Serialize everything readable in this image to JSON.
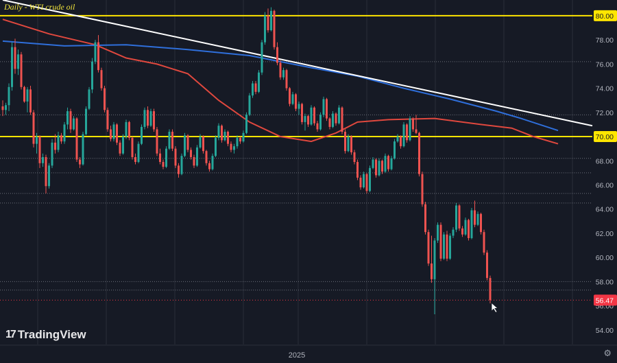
{
  "title": "Daily - WTI crude oil",
  "brand": {
    "logo": "17",
    "name": "TradingView"
  },
  "icons": {
    "settings": "settings-gear-icon",
    "cursor": "cursor-arrow-icon"
  },
  "colors": {
    "background": "#161a25",
    "grid": "#2a2e39",
    "up": "#26a69a",
    "down": "#ef5350",
    "level": "#ffe600",
    "trendline": "#ffffff",
    "ma_red": "#e0483e",
    "ma_blue": "#2f6fdb",
    "price_label": "#f23645"
  },
  "chart_data": {
    "type": "candlestick",
    "title": "Daily - WTI crude oil",
    "x_axis": {
      "tick_labels": [
        "2025"
      ]
    },
    "y_axis": {
      "side": "right",
      "range": [
        52.8,
        81.3
      ],
      "tick_labels": [
        "80.00",
        "78.00",
        "76.00",
        "74.00",
        "72.00",
        "70.00",
        "68.00",
        "66.00",
        "64.00",
        "62.00",
        "60.00",
        "58.00",
        "56.00",
        "54.00"
      ]
    },
    "last_price": 56.47,
    "horizontal_levels": [
      {
        "value": 80.0,
        "style": "thick",
        "color": "#ffe600"
      },
      {
        "value": 70.0,
        "style": "thick",
        "color": "#ffe600"
      },
      {
        "value": 76.2,
        "style": "dotted"
      },
      {
        "value": 71.8,
        "style": "dotted"
      },
      {
        "value": 68.2,
        "style": "dotted"
      },
      {
        "value": 67.0,
        "style": "dotted"
      },
      {
        "value": 65.3,
        "style": "dotted"
      },
      {
        "value": 64.5,
        "style": "dotted"
      },
      {
        "value": 58.0,
        "style": "dotted"
      },
      {
        "value": 57.3,
        "style": "dotted"
      }
    ],
    "trendline": {
      "from": {
        "index": 0,
        "value": 81.3
      },
      "to": {
        "index": 169,
        "value": 72.1
      }
    },
    "moving_averages": [
      {
        "color": "#e0483e",
        "points": [
          [
            0,
            79.7
          ],
          [
            15,
            78.5
          ],
          [
            30,
            77.6
          ],
          [
            40,
            76.5
          ],
          [
            50,
            76.0
          ],
          [
            60,
            75.2
          ],
          [
            70,
            73.0
          ],
          [
            80,
            71.2
          ],
          [
            90,
            70.0
          ],
          [
            100,
            69.6
          ],
          [
            108,
            70.3
          ],
          [
            115,
            71.2
          ],
          [
            125,
            71.4
          ],
          [
            140,
            71.5
          ],
          [
            155,
            71.0
          ],
          [
            165,
            70.7
          ],
          [
            172,
            70.0
          ],
          [
            180,
            69.4
          ]
        ]
      },
      {
        "color": "#2f6fdb",
        "points": [
          [
            0,
            77.9
          ],
          [
            20,
            77.5
          ],
          [
            40,
            77.6
          ],
          [
            60,
            77.2
          ],
          [
            80,
            76.7
          ],
          [
            100,
            75.7
          ],
          [
            115,
            75.0
          ],
          [
            130,
            74.0
          ],
          [
            145,
            73.1
          ],
          [
            160,
            72.1
          ],
          [
            168,
            71.5
          ],
          [
            180,
            70.5
          ]
        ]
      }
    ],
    "candles": [
      [
        72.5,
        73.0,
        71.7,
        72.2
      ],
      [
        72.2,
        72.8,
        71.8,
        72.6
      ],
      [
        72.6,
        74.4,
        72.1,
        74.1
      ],
      [
        74.1,
        77.8,
        73.8,
        77.4
      ],
      [
        77.4,
        78.1,
        75.2,
        75.6
      ],
      [
        75.6,
        77.2,
        75.1,
        76.8
      ],
      [
        76.8,
        77.0,
        73.9,
        74.1
      ],
      [
        74.1,
        74.2,
        72.8,
        72.9
      ],
      [
        72.9,
        74.1,
        72.0,
        73.9
      ],
      [
        73.9,
        74.2,
        71.8,
        72.0
      ],
      [
        72.0,
        72.2,
        69.1,
        69.4
      ],
      [
        69.4,
        70.3,
        68.6,
        70.0
      ],
      [
        70.0,
        70.1,
        67.4,
        67.8
      ],
      [
        67.8,
        68.6,
        67.5,
        68.3
      ],
      [
        68.3,
        68.5,
        65.3,
        65.9
      ],
      [
        65.9,
        67.8,
        65.7,
        67.6
      ],
      [
        67.6,
        69.8,
        67.4,
        69.5
      ],
      [
        69.5,
        70.2,
        68.6,
        68.9
      ],
      [
        68.9,
        70.4,
        68.7,
        70.1
      ],
      [
        70.1,
        70.3,
        69.4,
        69.6
      ],
      [
        69.6,
        71.2,
        69.4,
        71.0
      ],
      [
        71.0,
        72.4,
        70.6,
        72.1
      ],
      [
        72.1,
        72.3,
        70.3,
        70.6
      ],
      [
        70.6,
        71.7,
        70.5,
        71.5
      ],
      [
        71.5,
        71.6,
        67.9,
        68.1
      ],
      [
        68.1,
        68.3,
        67.4,
        67.7
      ],
      [
        67.7,
        70.4,
        67.6,
        70.2
      ],
      [
        70.2,
        72.5,
        70.1,
        72.3
      ],
      [
        72.3,
        74.1,
        72.2,
        73.9
      ],
      [
        73.9,
        76.5,
        73.6,
        76.2
      ],
      [
        76.2,
        78.0,
        76.0,
        77.8
      ],
      [
        77.8,
        78.4,
        75.3,
        75.5
      ],
      [
        75.5,
        75.7,
        73.8,
        74.0
      ],
      [
        74.0,
        74.2,
        72.0,
        72.2
      ],
      [
        72.2,
        72.4,
        70.4,
        70.6
      ],
      [
        70.6,
        70.9,
        69.6,
        69.8
      ],
      [
        69.8,
        71.2,
        69.6,
        71.0
      ],
      [
        71.0,
        71.1,
        69.3,
        69.5
      ],
      [
        69.5,
        69.7,
        68.4,
        68.6
      ],
      [
        68.6,
        70.2,
        68.5,
        70.0
      ],
      [
        70.0,
        71.4,
        69.8,
        71.2
      ],
      [
        71.2,
        71.3,
        69.7,
        69.9
      ],
      [
        69.9,
        70.0,
        68.1,
        68.3
      ],
      [
        68.3,
        68.6,
        67.7,
        67.9
      ],
      [
        67.9,
        69.6,
        67.8,
        69.4
      ],
      [
        69.4,
        71.0,
        69.3,
        70.8
      ],
      [
        70.8,
        72.4,
        70.6,
        72.2
      ],
      [
        72.2,
        72.5,
        70.7,
        70.9
      ],
      [
        70.9,
        72.3,
        70.8,
        72.1
      ],
      [
        72.1,
        72.3,
        70.4,
        70.6
      ],
      [
        70.6,
        70.8,
        68.4,
        68.6
      ],
      [
        68.6,
        69.0,
        67.7,
        67.9
      ],
      [
        67.9,
        68.1,
        67.3,
        67.5
      ],
      [
        67.5,
        69.2,
        67.4,
        69.0
      ],
      [
        69.0,
        70.6,
        68.9,
        70.4
      ],
      [
        70.4,
        70.6,
        68.8,
        69.0
      ],
      [
        69.0,
        69.2,
        67.4,
        67.6
      ],
      [
        67.6,
        67.8,
        66.6,
        66.9
      ],
      [
        66.9,
        68.6,
        66.8,
        68.4
      ],
      [
        68.4,
        70.3,
        68.3,
        70.1
      ],
      [
        70.1,
        70.2,
        68.7,
        68.9
      ],
      [
        68.9,
        69.1,
        68.1,
        68.3
      ],
      [
        68.3,
        68.5,
        67.4,
        67.6
      ],
      [
        67.6,
        69.3,
        67.5,
        69.1
      ],
      [
        69.1,
        70.2,
        69.0,
        70.0
      ],
      [
        70.0,
        70.1,
        68.6,
        68.8
      ],
      [
        68.8,
        68.9,
        67.6,
        67.8
      ],
      [
        67.8,
        68.0,
        67.1,
        67.3
      ],
      [
        67.3,
        68.6,
        67.2,
        68.4
      ],
      [
        68.4,
        70.1,
        68.3,
        69.9
      ],
      [
        69.9,
        71.1,
        69.7,
        70.9
      ],
      [
        70.9,
        71.0,
        69.5,
        69.7
      ],
      [
        69.7,
        70.6,
        69.6,
        70.4
      ],
      [
        70.4,
        70.5,
        69.2,
        69.4
      ],
      [
        69.4,
        69.6,
        68.7,
        68.9
      ],
      [
        68.9,
        69.4,
        68.6,
        69.2
      ],
      [
        69.2,
        70.1,
        69.0,
        69.9
      ],
      [
        69.9,
        70.0,
        69.4,
        69.6
      ],
      [
        69.6,
        70.5,
        69.5,
        70.3
      ],
      [
        70.3,
        72.0,
        70.2,
        71.8
      ],
      [
        71.8,
        73.6,
        71.7,
        73.4
      ],
      [
        73.4,
        74.6,
        73.2,
        74.4
      ],
      [
        74.4,
        74.6,
        73.5,
        73.7
      ],
      [
        73.7,
        75.5,
        73.6,
        75.3
      ],
      [
        75.3,
        78.0,
        75.1,
        77.8
      ],
      [
        77.8,
        80.3,
        77.6,
        80.0
      ],
      [
        80.0,
        80.6,
        78.6,
        78.8
      ],
      [
        78.8,
        80.7,
        78.7,
        80.4
      ],
      [
        80.4,
        80.5,
        77.2,
        77.4
      ],
      [
        77.4,
        77.8,
        75.9,
        76.1
      ],
      [
        76.1,
        76.3,
        74.7,
        74.9
      ],
      [
        74.9,
        75.7,
        74.7,
        75.5
      ],
      [
        75.5,
        75.6,
        73.8,
        74.0
      ],
      [
        74.0,
        74.1,
        72.5,
        72.7
      ],
      [
        72.7,
        73.7,
        72.6,
        73.5
      ],
      [
        73.5,
        73.6,
        72.1,
        72.3
      ],
      [
        72.3,
        72.9,
        71.8,
        72.7
      ],
      [
        72.7,
        72.8,
        71.0,
        71.2
      ],
      [
        71.2,
        71.9,
        70.5,
        71.7
      ],
      [
        71.7,
        71.8,
        70.8,
        71.0
      ],
      [
        71.0,
        72.6,
        70.9,
        72.4
      ],
      [
        72.4,
        72.5,
        70.9,
        71.1
      ],
      [
        71.1,
        71.3,
        70.4,
        70.6
      ],
      [
        70.6,
        72.0,
        70.5,
        71.8
      ],
      [
        71.8,
        73.3,
        71.6,
        73.1
      ],
      [
        73.1,
        73.2,
        71.3,
        71.5
      ],
      [
        71.5,
        71.6,
        70.6,
        70.8
      ],
      [
        70.8,
        72.1,
        70.7,
        71.9
      ],
      [
        71.9,
        72.0,
        70.9,
        71.1
      ],
      [
        71.1,
        72.6,
        71.0,
        72.4
      ],
      [
        72.4,
        72.5,
        70.2,
        70.4
      ],
      [
        70.4,
        70.6,
        68.6,
        68.8
      ],
      [
        68.8,
        70.2,
        68.7,
        70.0
      ],
      [
        70.0,
        70.1,
        68.5,
        68.7
      ],
      [
        68.7,
        68.9,
        67.7,
        67.9
      ],
      [
        67.9,
        68.1,
        66.4,
        66.6
      ],
      [
        66.6,
        66.8,
        65.6,
        65.8
      ],
      [
        65.8,
        67.1,
        65.7,
        66.9
      ],
      [
        66.9,
        67.0,
        65.3,
        65.5
      ],
      [
        65.5,
        67.6,
        65.4,
        67.4
      ],
      [
        67.4,
        68.3,
        67.3,
        68.1
      ],
      [
        68.1,
        68.2,
        66.6,
        66.8
      ],
      [
        66.8,
        68.2,
        66.7,
        68.0
      ],
      [
        68.0,
        68.1,
        66.9,
        67.1
      ],
      [
        67.1,
        68.6,
        67.0,
        68.4
      ],
      [
        68.4,
        68.5,
        67.1,
        67.3
      ],
      [
        67.3,
        68.4,
        67.2,
        68.2
      ],
      [
        68.2,
        69.8,
        68.1,
        69.6
      ],
      [
        69.6,
        70.2,
        69.5,
        70.0
      ],
      [
        70.0,
        70.1,
        69.0,
        69.2
      ],
      [
        69.2,
        71.2,
        69.1,
        71.0
      ],
      [
        71.0,
        71.1,
        69.5,
        69.7
      ],
      [
        69.7,
        71.7,
        69.6,
        71.5
      ],
      [
        71.5,
        71.6,
        70.4,
        70.6
      ],
      [
        70.6,
        71.8,
        70.2,
        70.3
      ],
      [
        70.3,
        70.4,
        66.7,
        66.9
      ],
      [
        66.9,
        67.1,
        64.2,
        64.4
      ],
      [
        64.4,
        64.6,
        61.9,
        62.1
      ],
      [
        62.1,
        62.3,
        59.3,
        59.5
      ],
      [
        59.5,
        61.8,
        57.9,
        58.2
      ],
      [
        58.2,
        61.6,
        55.3,
        61.4
      ],
      [
        61.4,
        62.9,
        61.2,
        62.7
      ],
      [
        62.7,
        62.9,
        59.7,
        59.9
      ],
      [
        59.9,
        62.1,
        59.8,
        61.9
      ],
      [
        61.9,
        62.2,
        59.7,
        59.9
      ],
      [
        59.9,
        62.0,
        59.8,
        61.8
      ],
      [
        61.8,
        62.5,
        61.6,
        62.3
      ],
      [
        62.3,
        64.5,
        62.1,
        64.3
      ],
      [
        64.3,
        64.4,
        62.2,
        62.4
      ],
      [
        62.4,
        62.6,
        61.7,
        61.9
      ],
      [
        61.9,
        63.3,
        61.8,
        63.1
      ],
      [
        63.1,
        63.2,
        61.4,
        61.6
      ],
      [
        61.6,
        64.1,
        61.5,
        63.9
      ],
      [
        63.9,
        64.7,
        62.5,
        62.7
      ],
      [
        62.7,
        63.8,
        62.6,
        63.6
      ],
      [
        63.6,
        63.7,
        61.9,
        62.1
      ],
      [
        62.1,
        62.3,
        60.2,
        60.4
      ],
      [
        60.4,
        60.6,
        58.1,
        58.3
      ],
      [
        58.3,
        58.5,
        56.2,
        56.47
      ]
    ]
  }
}
